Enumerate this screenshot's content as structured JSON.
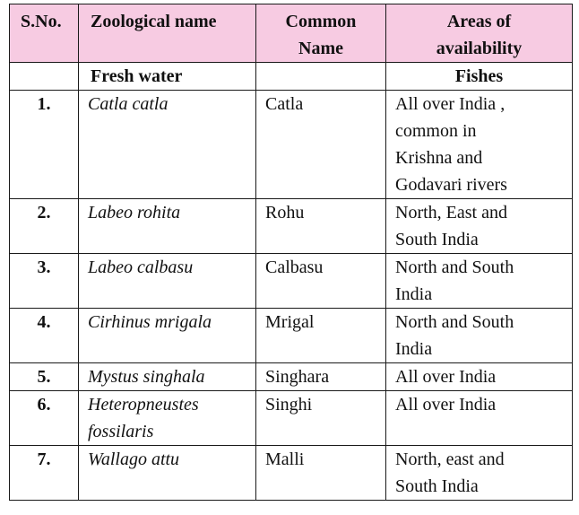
{
  "table": {
    "headers": {
      "sno": "S.No.",
      "zoological": "Zoological name",
      "common_line1": "Common",
      "common_line2": "Name",
      "areas_line1": "Areas of",
      "areas_line2": "availability"
    },
    "subheader": {
      "zoological": "Fresh water",
      "common": "",
      "areas": "Fishes"
    },
    "rows": [
      {
        "sno": "1.",
        "zoological": "Catla catla",
        "common": "Catla",
        "areas": [
          "All over India ,",
          "common in",
          "Krishna and",
          "Godavari rivers"
        ]
      },
      {
        "sno": "2.",
        "zoological": "Labeo rohita",
        "common": "Rohu",
        "areas": [
          "North, East and",
          "South India"
        ]
      },
      {
        "sno": "3.",
        "zoological": "Labeo calbasu",
        "common": "Calbasu",
        "areas": [
          "North and South",
          "India"
        ]
      },
      {
        "sno": "4.",
        "zoological": "Cirhinus mrigala",
        "common": "Mrigal",
        "areas": [
          "North and South",
          "India"
        ]
      },
      {
        "sno": "5.",
        "zoological": "Mystus singhala",
        "common": "Singhara",
        "areas": [
          "All over India"
        ]
      },
      {
        "sno": "6.",
        "zoological": "Heteropneustes fossilaris",
        "common": "Singhi",
        "areas": [
          "All over India"
        ]
      },
      {
        "sno": "7.",
        "zoological": "Wallago attu",
        "common": "Malli",
        "areas": [
          "North, east and",
          "South India"
        ]
      }
    ]
  },
  "colors": {
    "header_bg": "#f7cbe2",
    "border": "#1a1a1a",
    "text": "#111111"
  }
}
